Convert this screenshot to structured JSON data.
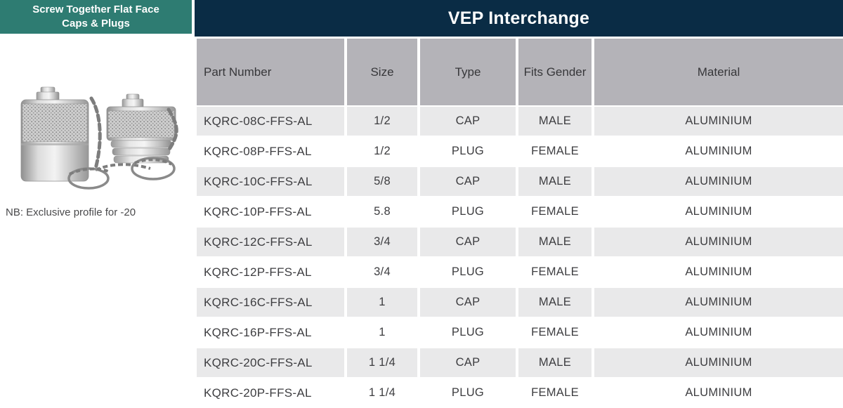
{
  "sidebar": {
    "title_line1": "Screw Together Flat Face",
    "title_line2": "Caps & Plugs",
    "note": "NB: Exclusive profile for -20"
  },
  "banner": {
    "title": "VEP Interchange"
  },
  "table": {
    "columns": [
      "Part Number",
      "Size",
      "Type",
      "Fits Gender",
      "Material"
    ],
    "rows": [
      {
        "part_number": "KQRC-08C-FFS-AL",
        "size": "1/2",
        "type": "CAP",
        "fits_gender": "MALE",
        "material": "ALUMINIUM"
      },
      {
        "part_number": "KQRC-08P-FFS-AL",
        "size": "1/2",
        "type": "PLUG",
        "fits_gender": "FEMALE",
        "material": "ALUMINIUM"
      },
      {
        "part_number": "KQRC-10C-FFS-AL",
        "size": "5/8",
        "type": "CAP",
        "fits_gender": "MALE",
        "material": "ALUMINIUM"
      },
      {
        "part_number": "KQRC-10P-FFS-AL",
        "size": "5.8",
        "type": "PLUG",
        "fits_gender": "FEMALE",
        "material": "ALUMINIUM"
      },
      {
        "part_number": "KQRC-12C-FFS-AL",
        "size": "3/4",
        "type": "CAP",
        "fits_gender": "MALE",
        "material": "ALUMINIUM"
      },
      {
        "part_number": "KQRC-12P-FFS-AL",
        "size": "3/4",
        "type": "PLUG",
        "fits_gender": "FEMALE",
        "material": "ALUMINIUM"
      },
      {
        "part_number": "KQRC-16C-FFS-AL",
        "size": "1",
        "type": "CAP",
        "fits_gender": "MALE",
        "material": "ALUMINIUM"
      },
      {
        "part_number": "KQRC-16P-FFS-AL",
        "size": "1",
        "type": "PLUG",
        "fits_gender": "FEMALE",
        "material": "ALUMINIUM"
      },
      {
        "part_number": "KQRC-20C-FFS-AL",
        "size": "1 1/4",
        "type": "CAP",
        "fits_gender": "MALE",
        "material": "ALUMINIUM"
      },
      {
        "part_number": "KQRC-20P-FFS-AL",
        "size": "1 1/4",
        "type": "PLUG",
        "fits_gender": "FEMALE",
        "material": "ALUMINIUM"
      }
    ]
  },
  "colors": {
    "teal": "#2E7C72",
    "navy": "#0A2C45",
    "header_gray": "#B4B3B8",
    "row_gray": "#E9E9EA",
    "text_dark": "#3D3D40"
  }
}
